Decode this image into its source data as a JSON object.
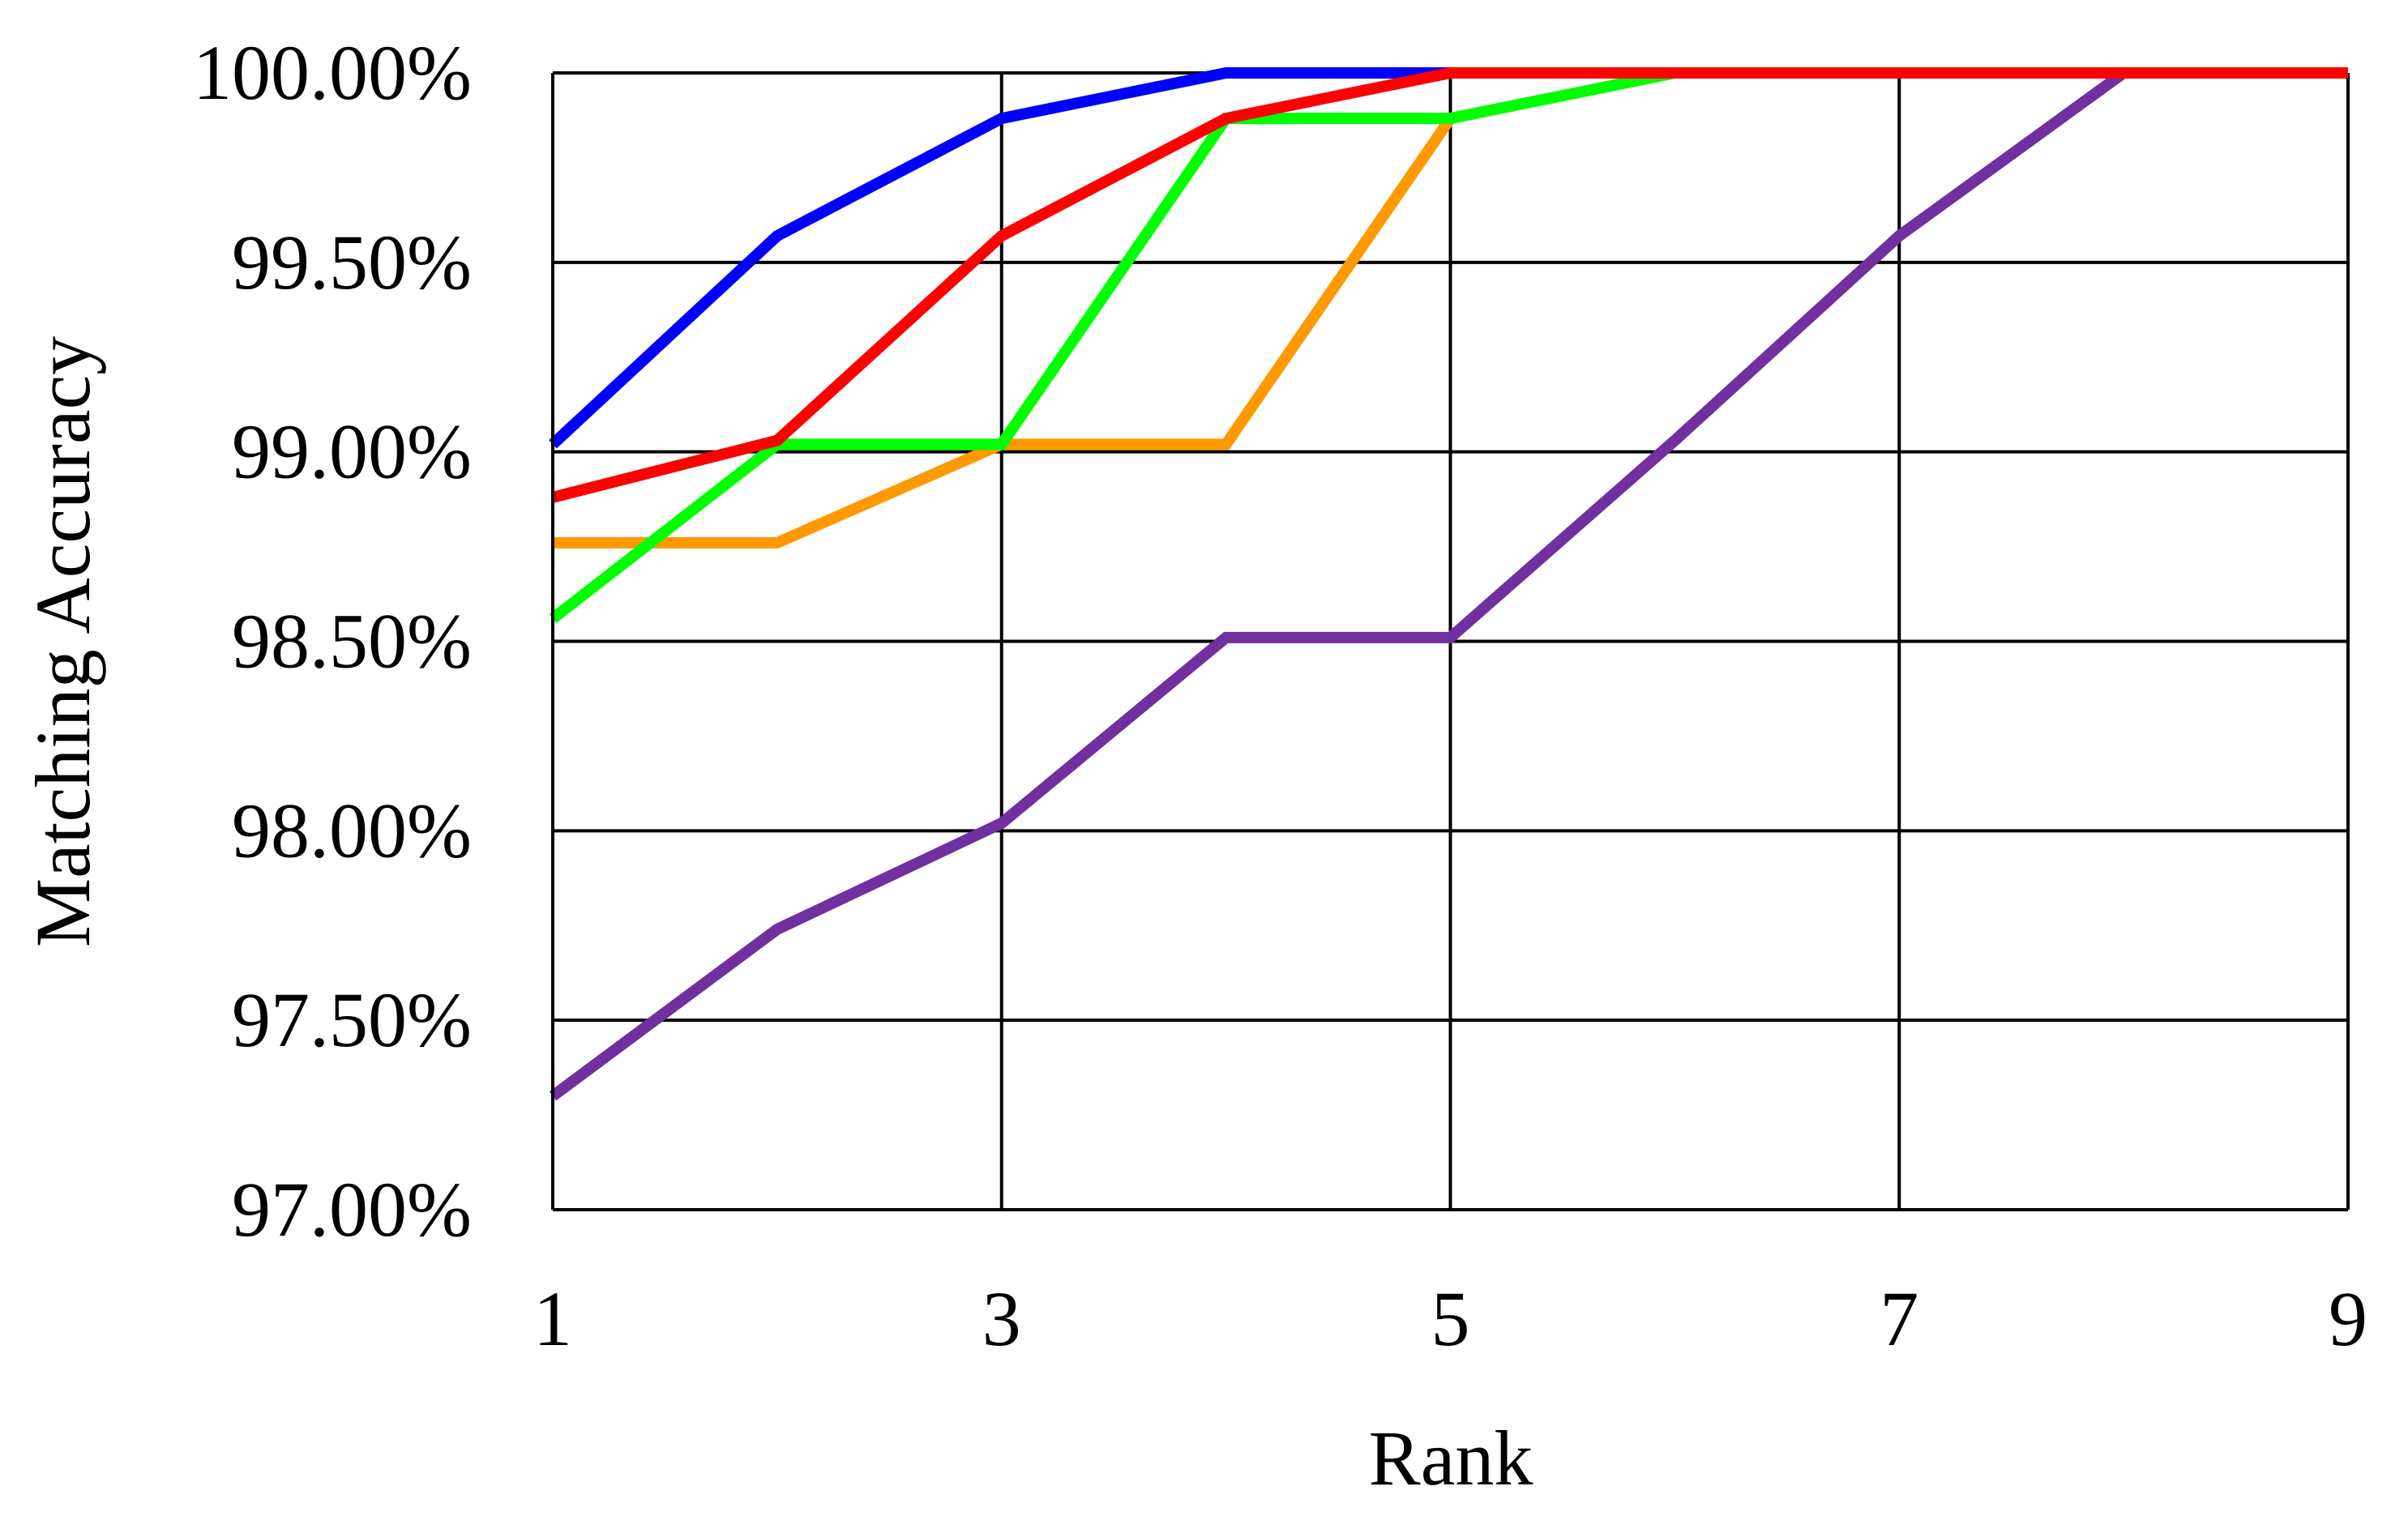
{
  "chart_data": {
    "type": "line",
    "xlabel": "Rank",
    "ylabel": "Matching Accuracy",
    "x": [
      1,
      2,
      3,
      4,
      5,
      6,
      7,
      8,
      9
    ],
    "xlim": [
      1,
      9
    ],
    "ylim": [
      97.0,
      100.0
    ],
    "x_ticks": [
      1,
      3,
      5,
      7,
      9
    ],
    "x_tick_labels": [
      "1",
      "3",
      "5",
      "7",
      "9"
    ],
    "y_ticks": [
      97.0,
      97.5,
      98.0,
      98.5,
      99.0,
      99.5,
      100.0
    ],
    "y_tick_labels": [
      "97.00%",
      "97.50%",
      "98.00%",
      "98.50%",
      "99.00%",
      "99.50%",
      "100.00%"
    ],
    "grid": true,
    "legend": "none",
    "series": [
      {
        "color": "#7030a0",
        "values": [
          97.3,
          97.74,
          98.02,
          98.51,
          98.51,
          99.03,
          99.57,
          100.0,
          100.0
        ]
      },
      {
        "color": "#ff9900",
        "values": [
          98.76,
          98.76,
          99.02,
          99.02,
          99.88,
          100.0,
          100.0,
          100.0,
          100.0
        ]
      },
      {
        "color": "#00ff00",
        "values": [
          98.56,
          99.02,
          99.02,
          99.88,
          99.88,
          100.0,
          100.0,
          100.0,
          100.0
        ]
      },
      {
        "color": "#0000ff",
        "values": [
          99.02,
          99.57,
          99.88,
          100.0,
          100.0,
          100.0,
          100.0,
          100.0,
          100.0
        ]
      },
      {
        "color": "#ff0000",
        "values": [
          98.88,
          99.03,
          99.57,
          99.88,
          100.0,
          100.0,
          100.0,
          100.0,
          100.0
        ]
      }
    ]
  }
}
